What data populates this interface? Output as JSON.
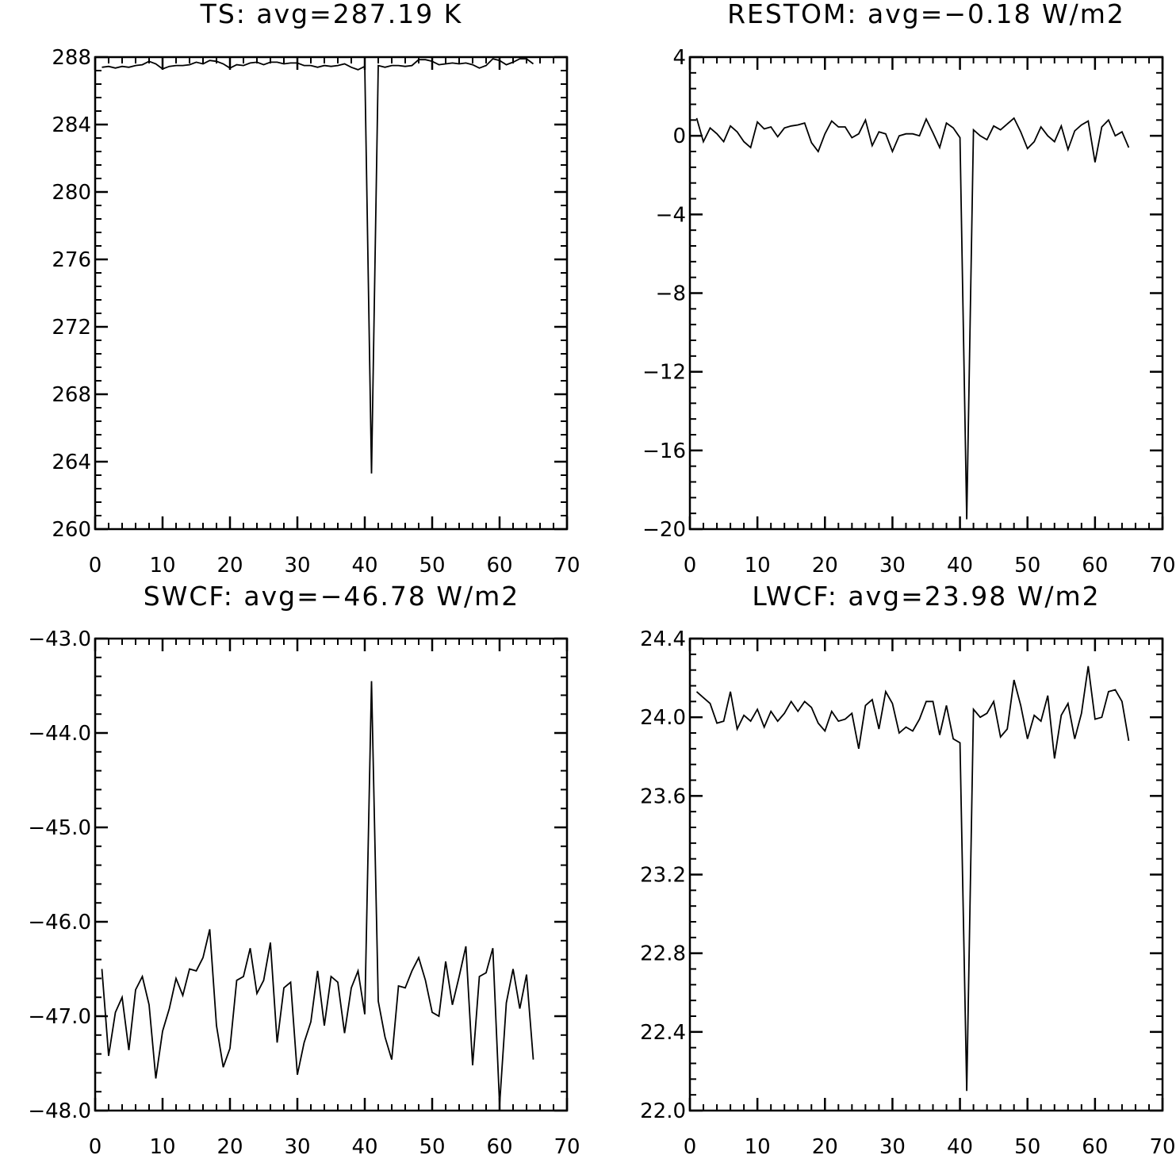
{
  "chart_data": [
    {
      "type": "line",
      "title": "TS: avg=287.19 K",
      "xlabel": "",
      "ylabel": "",
      "xlim": [
        0,
        70
      ],
      "ylim": [
        260,
        288
      ],
      "xticks": [
        0,
        10,
        20,
        30,
        40,
        50,
        60,
        70
      ],
      "yticks": [
        260,
        264,
        268,
        272,
        276,
        280,
        284,
        288
      ],
      "ytick_labels": [
        "260",
        "264",
        "268",
        "272",
        "276",
        "280",
        "284",
        "288"
      ],
      "grid": false,
      "x": [
        1,
        2,
        3,
        4,
        5,
        6,
        7,
        8,
        9,
        10,
        11,
        12,
        13,
        14,
        15,
        16,
        17,
        18,
        19,
        20,
        21,
        22,
        23,
        24,
        25,
        26,
        27,
        28,
        29,
        30,
        31,
        32,
        33,
        34,
        35,
        36,
        37,
        38,
        39,
        40,
        41,
        42,
        43,
        44,
        45,
        46,
        47,
        48,
        49,
        50,
        51,
        52,
        53,
        54,
        55,
        56,
        57,
        58,
        59,
        60,
        61,
        62,
        63,
        64,
        65
      ],
      "y": [
        287.4,
        287.45,
        287.35,
        287.45,
        287.4,
        287.5,
        287.55,
        287.75,
        287.6,
        287.3,
        287.45,
        287.5,
        287.5,
        287.55,
        287.7,
        287.6,
        287.8,
        287.75,
        287.6,
        287.35,
        287.55,
        287.5,
        287.65,
        287.7,
        287.55,
        287.7,
        287.7,
        287.6,
        287.65,
        287.65,
        287.5,
        287.5,
        287.4,
        287.5,
        287.45,
        287.5,
        287.6,
        287.4,
        287.25,
        287.45,
        263.3,
        287.5,
        287.4,
        287.5,
        287.5,
        287.45,
        287.5,
        287.85,
        287.85,
        287.75,
        287.55,
        287.6,
        287.65,
        287.6,
        287.65,
        287.55,
        287.35,
        287.5,
        287.9,
        287.8,
        287.55,
        287.7,
        287.9,
        287.9,
        287.6
      ]
    },
    {
      "type": "line",
      "title": "RESTOM: avg=−0.18 W/m2",
      "xlabel": "",
      "ylabel": "",
      "xlim": [
        0,
        70
      ],
      "ylim": [
        -20,
        4
      ],
      "xticks": [
        0,
        10,
        20,
        30,
        40,
        50,
        60,
        70
      ],
      "yticks": [
        -20,
        -16,
        -12,
        -8,
        -4,
        0,
        4
      ],
      "ytick_labels": [
        "−20",
        "−16",
        "−12",
        "−8",
        "−4",
        "0",
        "4"
      ],
      "grid": false,
      "x": [
        1,
        2,
        3,
        4,
        5,
        6,
        7,
        8,
        9,
        10,
        11,
        12,
        13,
        14,
        15,
        16,
        17,
        18,
        19,
        20,
        21,
        22,
        23,
        24,
        25,
        26,
        27,
        28,
        29,
        30,
        31,
        32,
        33,
        34,
        35,
        36,
        37,
        38,
        39,
        40,
        41,
        42,
        43,
        44,
        45,
        46,
        47,
        48,
        49,
        50,
        51,
        52,
        53,
        54,
        55,
        56,
        57,
        58,
        59,
        60,
        61,
        62,
        63,
        64,
        65
      ],
      "y": [
        0.9,
        -0.3,
        0.4,
        0.1,
        -0.3,
        0.5,
        0.2,
        -0.3,
        -0.6,
        0.7,
        0.35,
        0.45,
        -0.05,
        0.4,
        0.5,
        0.55,
        0.65,
        -0.35,
        -0.8,
        0.1,
        0.75,
        0.45,
        0.45,
        -0.1,
        0.1,
        0.8,
        -0.5,
        0.2,
        0.1,
        -0.8,
        0.0,
        0.1,
        0.1,
        0.0,
        0.85,
        0.15,
        -0.6,
        0.65,
        0.4,
        -0.1,
        -19.5,
        0.3,
        0.0,
        -0.2,
        0.5,
        0.3,
        0.6,
        0.9,
        0.2,
        -0.65,
        -0.3,
        0.45,
        0.0,
        -0.3,
        0.5,
        -0.7,
        0.25,
        0.55,
        0.75,
        -1.35,
        0.45,
        0.8,
        0.0,
        0.2,
        -0.6
      ]
    },
    {
      "type": "line",
      "title": "SWCF: avg=−46.78 W/m2",
      "xlabel": "",
      "ylabel": "",
      "xlim": [
        0,
        70
      ],
      "ylim": [
        -48,
        -43
      ],
      "xticks": [
        0,
        10,
        20,
        30,
        40,
        50,
        60,
        70
      ],
      "yticks": [
        -48,
        -47,
        -46,
        -45,
        -44,
        -43
      ],
      "ytick_labels": [
        "−48.0",
        "−47.0",
        "−46.0",
        "−45.0",
        "−44.0",
        "−43.0"
      ],
      "grid": false,
      "x": [
        1,
        2,
        3,
        4,
        5,
        6,
        7,
        8,
        9,
        10,
        11,
        12,
        13,
        14,
        15,
        16,
        17,
        18,
        19,
        20,
        21,
        22,
        23,
        24,
        25,
        26,
        27,
        28,
        29,
        30,
        31,
        32,
        33,
        34,
        35,
        36,
        37,
        38,
        39,
        40,
        41,
        42,
        43,
        44,
        45,
        46,
        47,
        48,
        49,
        50,
        51,
        52,
        53,
        54,
        55,
        56,
        57,
        58,
        59,
        60,
        61,
        62,
        63,
        64,
        65
      ],
      "y": [
        -46.5,
        -47.42,
        -46.96,
        -46.8,
        -47.36,
        -46.72,
        -46.58,
        -46.88,
        -47.66,
        -47.16,
        -46.92,
        -46.6,
        -46.78,
        -46.5,
        -46.52,
        -46.38,
        -46.08,
        -47.1,
        -47.54,
        -47.34,
        -46.62,
        -46.58,
        -46.28,
        -46.76,
        -46.62,
        -46.22,
        -47.28,
        -46.7,
        -46.64,
        -47.62,
        -47.28,
        -47.06,
        -46.52,
        -47.1,
        -46.58,
        -46.64,
        -47.18,
        -46.7,
        -46.52,
        -46.98,
        -43.45,
        -46.84,
        -47.22,
        -47.46,
        -46.68,
        -46.7,
        -46.52,
        -46.38,
        -46.62,
        -46.96,
        -47.0,
        -46.42,
        -46.88,
        -46.58,
        -46.26,
        -47.52,
        -46.58,
        -46.54,
        -46.28,
        -47.94,
        -46.86,
        -46.5,
        -46.92,
        -46.56,
        -47.46
      ]
    },
    {
      "type": "line",
      "title": "LWCF: avg=23.98 W/m2",
      "xlabel": "",
      "ylabel": "",
      "xlim": [
        0,
        70
      ],
      "ylim": [
        22.0,
        24.4
      ],
      "xticks": [
        0,
        10,
        20,
        30,
        40,
        50,
        60,
        70
      ],
      "yticks": [
        22.0,
        22.4,
        22.8,
        23.2,
        23.6,
        24.0,
        24.4
      ],
      "ytick_labels": [
        "22.0",
        "22.4",
        "22.8",
        "23.2",
        "23.6",
        "24.0",
        "24.4"
      ],
      "grid": false,
      "x": [
        1,
        2,
        3,
        4,
        5,
        6,
        7,
        8,
        9,
        10,
        11,
        12,
        13,
        14,
        15,
        16,
        17,
        18,
        19,
        20,
        21,
        22,
        23,
        24,
        25,
        26,
        27,
        28,
        29,
        30,
        31,
        32,
        33,
        34,
        35,
        36,
        37,
        38,
        39,
        40,
        41,
        42,
        43,
        44,
        45,
        46,
        47,
        48,
        49,
        50,
        51,
        52,
        53,
        54,
        55,
        56,
        57,
        58,
        59,
        60,
        61,
        62,
        63,
        64,
        65
      ],
      "y": [
        24.13,
        24.1,
        24.07,
        23.97,
        23.98,
        24.13,
        23.94,
        24.01,
        23.98,
        24.04,
        23.95,
        24.03,
        23.98,
        24.02,
        24.08,
        24.03,
        24.08,
        24.05,
        23.97,
        23.93,
        24.03,
        23.98,
        23.99,
        24.02,
        23.84,
        24.06,
        24.09,
        23.94,
        24.13,
        24.07,
        23.92,
        23.95,
        23.93,
        23.99,
        24.08,
        24.08,
        23.91,
        24.06,
        23.89,
        23.87,
        22.1,
        24.04,
        24.0,
        24.02,
        24.08,
        23.9,
        23.94,
        24.19,
        24.06,
        23.89,
        24.01,
        23.98,
        24.11,
        23.79,
        24.01,
        24.07,
        23.89,
        24.02,
        24.26,
        23.99,
        24.0,
        24.13,
        24.14,
        24.08,
        23.88
      ]
    }
  ]
}
